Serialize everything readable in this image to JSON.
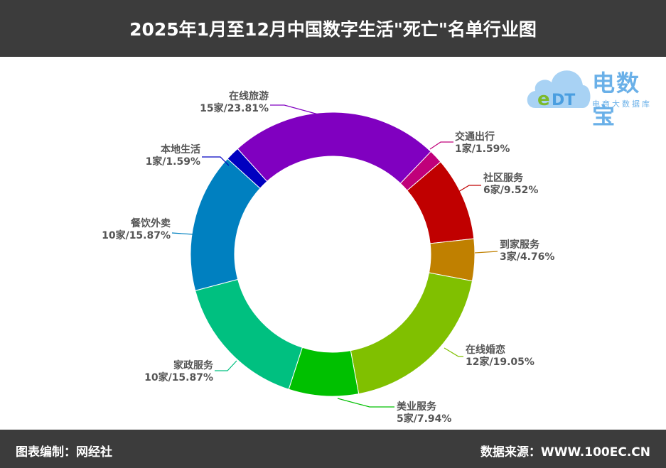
{
  "title": "2025年1月至12月中国数字生活\"死亡\"名单行业图",
  "footer": {
    "left": "图表编制：网经社",
    "right": "数据来源：WWW.100EC.CN"
  },
  "logo": {
    "name": "电数宝",
    "subtitle": "电商大数据库",
    "mark": "eDT"
  },
  "chart_data": {
    "type": "pie",
    "donut": true,
    "unit": "家",
    "slices": [
      {
        "name": "在线旅游",
        "value": 15,
        "percent": "23.81%",
        "label": "15家/23.81%",
        "color": "#8000c0"
      },
      {
        "name": "交通出行",
        "value": 1,
        "percent": "1.59%",
        "label": "1家/1.59%",
        "color": "#c0007a"
      },
      {
        "name": "社区服务",
        "value": 6,
        "percent": "9.52%",
        "label": "6家/9.52%",
        "color": "#c00000"
      },
      {
        "name": "到家服务",
        "value": 3,
        "percent": "4.76%",
        "label": "3家/4.76%",
        "color": "#c08000"
      },
      {
        "name": "在线婚恋",
        "value": 12,
        "percent": "19.05%",
        "label": "12家/19.05%",
        "color": "#80c000"
      },
      {
        "name": "美业服务",
        "value": 5,
        "percent": "7.94%",
        "label": "5家/7.94%",
        "color": "#00c000"
      },
      {
        "name": "家政服务",
        "value": 10,
        "percent": "15.87%",
        "label": "10家/15.87%",
        "color": "#00c080"
      },
      {
        "name": "餐饮外卖",
        "value": 10,
        "percent": "15.87%",
        "label": "10家/15.87%",
        "color": "#0080c0"
      },
      {
        "name": "本地生活",
        "value": 1,
        "percent": "1.59%",
        "label": "1家/1.59%",
        "color": "#0000c0"
      }
    ]
  }
}
